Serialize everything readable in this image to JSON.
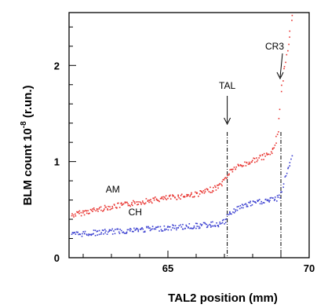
{
  "chart_data": {
    "type": "scatter",
    "title": "",
    "xlabel": "TAL2 position  (mm)",
    "ylabel_main": "BLM count 10",
    "ylabel_exp": "-8",
    "ylabel_unit": "  (r.un.)",
    "xlim": [
      61.5,
      70
    ],
    "ylim": [
      0,
      2.55
    ],
    "x_ticks": [
      65,
      70
    ],
    "y_ticks": [
      0,
      1,
      2
    ],
    "grid": false,
    "series": [
      {
        "name": "AM",
        "color": "#e8332f",
        "label_at": {
          "x": 62.8,
          "y": 0.68
        },
        "x": [
          61.6,
          62.0,
          62.5,
          63.0,
          63.5,
          64.0,
          64.5,
          65.0,
          65.5,
          66.0,
          66.4,
          66.8,
          67.0,
          67.2,
          67.5,
          67.8,
          68.1,
          68.4,
          68.7,
          68.9,
          69.0,
          69.1,
          69.2,
          69.3,
          69.4
        ],
        "y": [
          0.44,
          0.47,
          0.5,
          0.53,
          0.55,
          0.58,
          0.6,
          0.62,
          0.64,
          0.66,
          0.69,
          0.74,
          0.8,
          0.9,
          0.95,
          0.98,
          1.02,
          1.05,
          1.1,
          1.3,
          1.7,
          1.95,
          2.1,
          2.3,
          2.52
        ]
      },
      {
        "name": "CH",
        "color": "#3a3fd0",
        "label_at": {
          "x": 63.6,
          "y": 0.44
        },
        "x": [
          61.6,
          62.0,
          62.5,
          63.0,
          63.5,
          64.0,
          64.5,
          65.0,
          65.5,
          66.0,
          66.4,
          66.8,
          67.0,
          67.2,
          67.5,
          67.8,
          68.1,
          68.4,
          68.7,
          68.9,
          69.0,
          69.1,
          69.2,
          69.3,
          69.4
        ],
        "y": [
          0.24,
          0.25,
          0.26,
          0.27,
          0.28,
          0.29,
          0.3,
          0.31,
          0.32,
          0.33,
          0.34,
          0.35,
          0.37,
          0.46,
          0.52,
          0.55,
          0.57,
          0.59,
          0.6,
          0.62,
          0.66,
          0.78,
          0.88,
          0.98,
          1.06
        ]
      }
    ],
    "markers": [
      {
        "name": "TAL",
        "x": 67.1
      },
      {
        "name": "CR3",
        "x": 69.0
      }
    ]
  }
}
